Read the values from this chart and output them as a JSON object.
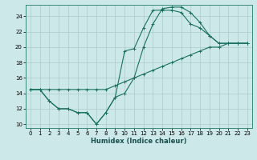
{
  "xlabel": "Humidex (Indice chaleur)",
  "bg_color": "#cce8e8",
  "grid_color": "#aacccc",
  "line_color": "#1a7060",
  "xlim": [
    -0.5,
    23.5
  ],
  "ylim": [
    9.5,
    25.5
  ],
  "xticks": [
    0,
    1,
    2,
    3,
    4,
    5,
    6,
    7,
    8,
    9,
    10,
    11,
    12,
    13,
    14,
    15,
    16,
    17,
    18,
    19,
    20,
    21,
    22,
    23
  ],
  "yticks": [
    10,
    12,
    14,
    16,
    18,
    20,
    22,
    24
  ],
  "line1_x": [
    0,
    1,
    2,
    3,
    4,
    5,
    6,
    7,
    8,
    9,
    10,
    11,
    12,
    13,
    14,
    15,
    16,
    17,
    18,
    19,
    20,
    21,
    22,
    23
  ],
  "line1_y": [
    14.5,
    14.5,
    14.5,
    14.5,
    14.5,
    14.5,
    14.5,
    14.5,
    14.5,
    15.0,
    15.5,
    16.0,
    16.5,
    17.0,
    17.5,
    18.0,
    18.5,
    19.0,
    19.5,
    20.0,
    20.0,
    20.5,
    20.5,
    20.5
  ],
  "line2_x": [
    0,
    1,
    2,
    3,
    4,
    5,
    6,
    7,
    8,
    9,
    10,
    11,
    12,
    13,
    14,
    15,
    16,
    17,
    18,
    19,
    20,
    21,
    22,
    23
  ],
  "line2_y": [
    14.5,
    14.5,
    13.0,
    12.0,
    12.0,
    11.5,
    11.5,
    10.0,
    11.5,
    13.5,
    19.5,
    19.8,
    22.5,
    24.8,
    24.8,
    24.8,
    24.5,
    23.0,
    22.5,
    21.5,
    20.5,
    20.5,
    20.5,
    20.5
  ],
  "line3_x": [
    0,
    1,
    2,
    3,
    4,
    5,
    6,
    7,
    8,
    9,
    10,
    11,
    12,
    13,
    14,
    15,
    16,
    17,
    18,
    19,
    20,
    21,
    22,
    23
  ],
  "line3_y": [
    14.5,
    14.5,
    13.0,
    12.0,
    12.0,
    11.5,
    11.5,
    10.0,
    11.5,
    13.5,
    14.0,
    16.0,
    20.0,
    23.0,
    25.0,
    25.2,
    25.2,
    24.5,
    23.2,
    21.5,
    20.5,
    20.5,
    20.5,
    20.5
  ],
  "xlabel_fontsize": 6,
  "tick_fontsize": 5
}
